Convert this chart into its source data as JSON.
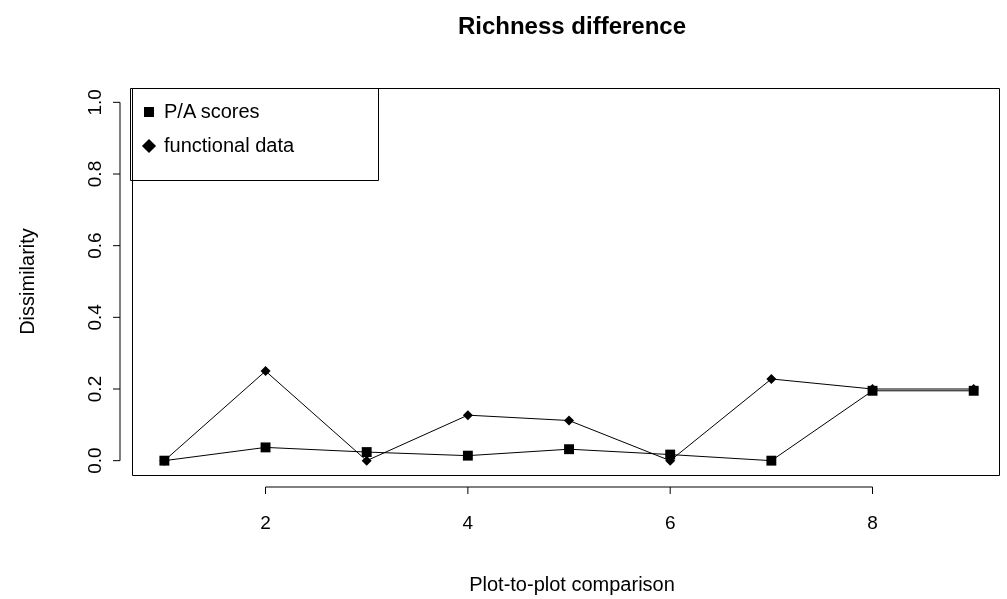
{
  "chart_data": {
    "type": "line",
    "title": "Richness difference",
    "xlabel": "Plot-to-plot comparison",
    "ylabel": "Dissimilarity",
    "x": [
      1,
      2,
      3,
      4,
      5,
      6,
      7,
      8,
      9
    ],
    "series": [
      {
        "name": "P/A scores",
        "color": "#000000",
        "marker": "square",
        "values": [
          0,
          0.037,
          0.024,
          0.014,
          0.032,
          0.017,
          0,
          0.195,
          0.195
        ]
      },
      {
        "name": "functional data",
        "color": "#000000",
        "marker": "diamond",
        "values": [
          0,
          0.25,
          0,
          0.127,
          0.112,
          0,
          0.228,
          0.2,
          0.2
        ]
      }
    ],
    "xlim": [
      0.68,
      9.26
    ],
    "xticks": [
      2,
      4,
      6,
      8
    ],
    "ylim": [
      -0.04,
      1.04
    ],
    "yticks": [
      {
        "value": 0,
        "label": "0.0"
      },
      {
        "value": 0.2,
        "label": "0.2"
      },
      {
        "value": 0.4,
        "label": "0.4"
      },
      {
        "value": 0.6,
        "label": "0.6"
      },
      {
        "value": 0.8,
        "label": "0.8"
      },
      {
        "value": 1,
        "label": "1.0"
      }
    ],
    "legend": "top left",
    "grid": false,
    "line_style": "solid"
  }
}
